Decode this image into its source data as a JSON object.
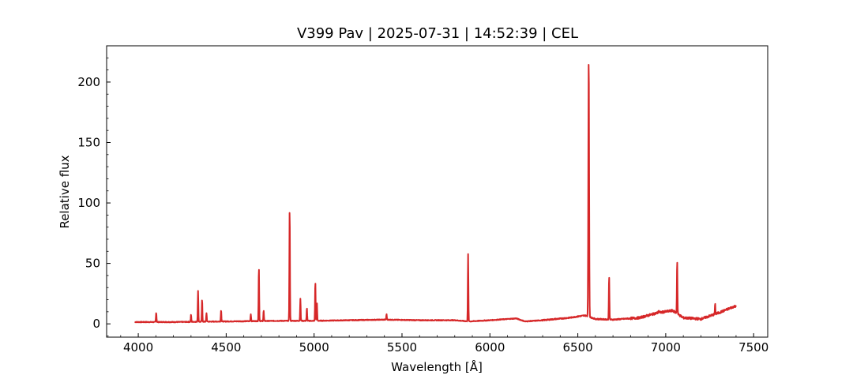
{
  "chart_data": {
    "type": "line",
    "title": "V399 Pav | 2025-07-31 | 14:52:39 | CEL",
    "xlabel": "Wavelength [Å]",
    "ylabel": "Relative flux",
    "xlim": [
      3820,
      7580
    ],
    "ylim": [
      -11,
      230
    ],
    "x_ticks": [
      4000,
      4500,
      5000,
      5500,
      6000,
      6500,
      7000,
      7500
    ],
    "y_ticks": [
      0,
      50,
      100,
      150,
      200
    ],
    "grid": false,
    "line_color": "#d62728",
    "series": [
      {
        "continuum": [
          [
            3980,
            1.5
          ],
          [
            4200,
            1.5
          ],
          [
            4500,
            2
          ],
          [
            4800,
            2.5
          ],
          [
            5000,
            2.5
          ],
          [
            5200,
            3
          ],
          [
            5400,
            3.5
          ],
          [
            5600,
            3
          ],
          [
            5800,
            3
          ],
          [
            5880,
            2
          ],
          [
            6000,
            3
          ],
          [
            6150,
            4.5
          ],
          [
            6200,
            2
          ],
          [
            6300,
            3
          ],
          [
            6450,
            5
          ],
          [
            6540,
            7
          ],
          [
            6600,
            4
          ],
          [
            6700,
            3.5
          ],
          [
            6850,
            5
          ],
          [
            6950,
            9
          ],
          [
            7040,
            11
          ],
          [
            7100,
            5
          ],
          [
            7200,
            4
          ],
          [
            7300,
            9
          ],
          [
            7400,
            15
          ]
        ],
        "peaks": [
          [
            4102,
            9.5
          ],
          [
            4300,
            7.5
          ],
          [
            4340,
            27.5
          ],
          [
            4363,
            20
          ],
          [
            4388,
            9
          ],
          [
            4471,
            11.5
          ],
          [
            4640,
            8
          ],
          [
            4686,
            47
          ],
          [
            4713,
            11
          ],
          [
            4861,
            96.5
          ],
          [
            4922,
            21
          ],
          [
            4959,
            13
          ],
          [
            5007,
            35
          ],
          [
            5016,
            17.5
          ],
          [
            5412,
            8
          ],
          [
            5876,
            57.5
          ],
          [
            6562,
            219.5
          ],
          [
            6678,
            40
          ],
          [
            6960,
            11
          ],
          [
            7065,
            52.5
          ],
          [
            7281,
            16
          ]
        ]
      }
    ]
  }
}
